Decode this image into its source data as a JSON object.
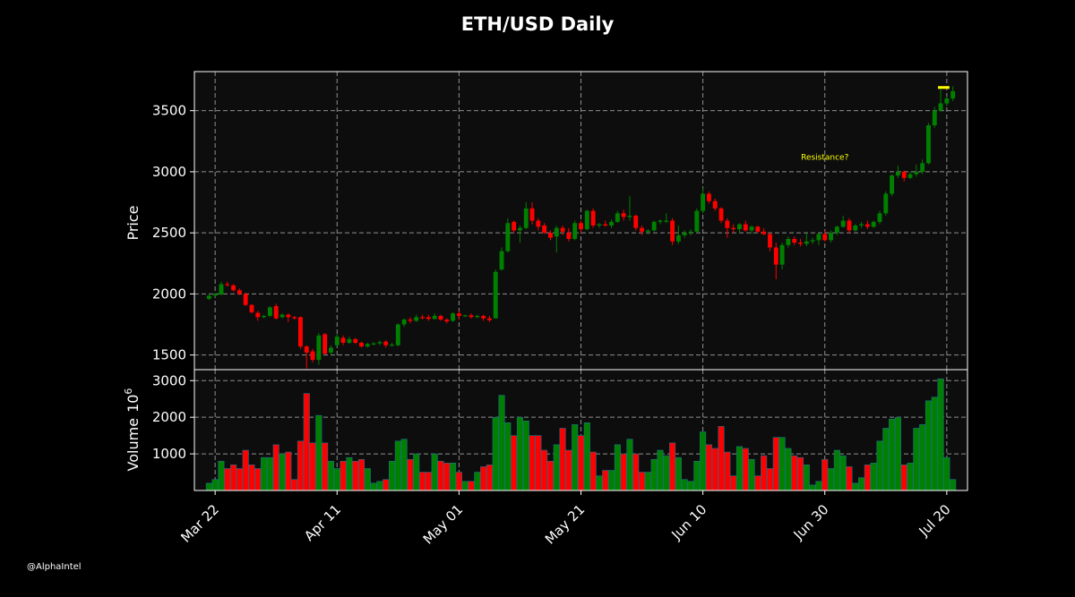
{
  "chart_data": {
    "type": "candlestick",
    "title": "ETH/USD Daily",
    "price_panel": {
      "ylabel": "Price",
      "ylim": [
        1380,
        3820
      ],
      "yticks": [
        1500,
        2000,
        2500,
        3000,
        3500
      ],
      "grid": true
    },
    "volume_panel": {
      "ylabel": "Volume",
      "ylabel_exponent": "10",
      "ylabel_exponent_power": "6",
      "ylim": [
        0,
        3300
      ],
      "yticks": [
        1000,
        2000,
        3000
      ],
      "grid": true
    },
    "x_axis": {
      "start_day": "Mar 21",
      "tick_labels": [
        "Mar 22",
        "Apr 11",
        "May 01",
        "May 21",
        "Jun 10",
        "Jun 30",
        "Jul 20"
      ],
      "tick_days": [
        "Mar 22",
        "Apr 11",
        "May 01",
        "May 21",
        "Jun 10",
        "Jun 30",
        "Jul 20"
      ]
    },
    "annotation": {
      "text": "Resistance?",
      "at_day": "Jun 30",
      "at_price": 3100,
      "color": "#ffff00"
    },
    "resistance_line": {
      "from_day": "Jul 19",
      "to_day": "Jul 20",
      "price": 3690,
      "color": "#ffff00"
    },
    "colors": {
      "up": "#008000",
      "down": "#ff0000",
      "background": "#000000",
      "plot_bg": "#0d0d0d",
      "grid": "#b0b0b0"
    },
    "candles": [
      {
        "d": "Mar 21",
        "o": 1960,
        "h": 2000,
        "l": 1950,
        "c": 1985,
        "v": 200
      },
      {
        "d": "Mar 22",
        "o": 1985,
        "h": 2010,
        "l": 1975,
        "c": 2000,
        "v": 300
      },
      {
        "d": "Mar 23",
        "o": 1995,
        "h": 2100,
        "l": 1990,
        "c": 2080,
        "v": 800
      },
      {
        "d": "Mar 24",
        "o": 2080,
        "h": 2100,
        "l": 2060,
        "c": 2075,
        "v": 600
      },
      {
        "d": "Mar 25",
        "o": 2070,
        "h": 2080,
        "l": 2020,
        "c": 2030,
        "v": 700
      },
      {
        "d": "Mar 26",
        "o": 2030,
        "h": 2045,
        "l": 1990,
        "c": 2000,
        "v": 600
      },
      {
        "d": "Mar 27",
        "o": 2000,
        "h": 2010,
        "l": 1900,
        "c": 1910,
        "v": 1100
      },
      {
        "d": "Mar 28",
        "o": 1910,
        "h": 1915,
        "l": 1840,
        "c": 1850,
        "v": 700
      },
      {
        "d": "Mar 29",
        "o": 1845,
        "h": 1860,
        "l": 1780,
        "c": 1810,
        "v": 600
      },
      {
        "d": "Mar 30",
        "o": 1810,
        "h": 1830,
        "l": 1800,
        "c": 1820,
        "v": 900
      },
      {
        "d": "Mar 31",
        "o": 1820,
        "h": 1900,
        "l": 1810,
        "c": 1890,
        "v": 900
      },
      {
        "d": "Apr 01",
        "o": 1900,
        "h": 1920,
        "l": 1790,
        "c": 1800,
        "v": 1250
      },
      {
        "d": "Apr 02",
        "o": 1810,
        "h": 1840,
        "l": 1800,
        "c": 1830,
        "v": 1000
      },
      {
        "d": "Apr 03",
        "o": 1830,
        "h": 1840,
        "l": 1770,
        "c": 1810,
        "v": 1050
      },
      {
        "d": "Apr 04",
        "o": 1810,
        "h": 1820,
        "l": 1790,
        "c": 1800,
        "v": 300
      },
      {
        "d": "Apr 05",
        "o": 1810,
        "h": 1815,
        "l": 1550,
        "c": 1570,
        "v": 1350
      },
      {
        "d": "Apr 06",
        "o": 1570,
        "h": 1580,
        "l": 1390,
        "c": 1520,
        "v": 2650
      },
      {
        "d": "Apr 07",
        "o": 1530,
        "h": 1550,
        "l": 1440,
        "c": 1460,
        "v": 1300
      },
      {
        "d": "Apr 08",
        "o": 1460,
        "h": 1680,
        "l": 1420,
        "c": 1660,
        "v": 2050
      },
      {
        "d": "Apr 09",
        "o": 1670,
        "h": 1680,
        "l": 1500,
        "c": 1510,
        "v": 1300
      },
      {
        "d": "Apr 10",
        "o": 1520,
        "h": 1580,
        "l": 1500,
        "c": 1560,
        "v": 800
      },
      {
        "d": "Apr 11",
        "o": 1580,
        "h": 1670,
        "l": 1570,
        "c": 1650,
        "v": 600
      },
      {
        "d": "Apr 12",
        "o": 1640,
        "h": 1660,
        "l": 1580,
        "c": 1600,
        "v": 800
      },
      {
        "d": "Apr 13",
        "o": 1600,
        "h": 1650,
        "l": 1590,
        "c": 1630,
        "v": 900
      },
      {
        "d": "Apr 14",
        "o": 1630,
        "h": 1640,
        "l": 1590,
        "c": 1600,
        "v": 800
      },
      {
        "d": "Apr 15",
        "o": 1600,
        "h": 1610,
        "l": 1560,
        "c": 1570,
        "v": 850
      },
      {
        "d": "Apr 16",
        "o": 1570,
        "h": 1600,
        "l": 1560,
        "c": 1590,
        "v": 600
      },
      {
        "d": "Apr 17",
        "o": 1590,
        "h": 1605,
        "l": 1580,
        "c": 1595,
        "v": 200
      },
      {
        "d": "Apr 18",
        "o": 1595,
        "h": 1620,
        "l": 1580,
        "c": 1605,
        "v": 250
      },
      {
        "d": "Apr 19",
        "o": 1610,
        "h": 1620,
        "l": 1560,
        "c": 1580,
        "v": 300
      },
      {
        "d": "Apr 20",
        "o": 1580,
        "h": 1600,
        "l": 1570,
        "c": 1585,
        "v": 800
      },
      {
        "d": "Apr 21",
        "o": 1580,
        "h": 1760,
        "l": 1570,
        "c": 1750,
        "v": 1350
      },
      {
        "d": "Apr 22",
        "o": 1750,
        "h": 1800,
        "l": 1730,
        "c": 1790,
        "v": 1400
      },
      {
        "d": "Apr 23",
        "o": 1790,
        "h": 1810,
        "l": 1760,
        "c": 1780,
        "v": 850
      },
      {
        "d": "Apr 24",
        "o": 1780,
        "h": 1830,
        "l": 1770,
        "c": 1810,
        "v": 1000
      },
      {
        "d": "Apr 25",
        "o": 1810,
        "h": 1830,
        "l": 1790,
        "c": 1805,
        "v": 500
      },
      {
        "d": "Apr 26",
        "o": 1810,
        "h": 1830,
        "l": 1780,
        "c": 1795,
        "v": 500
      },
      {
        "d": "Apr 27",
        "o": 1795,
        "h": 1840,
        "l": 1790,
        "c": 1820,
        "v": 1000
      },
      {
        "d": "Apr 28",
        "o": 1820,
        "h": 1830,
        "l": 1780,
        "c": 1790,
        "v": 800
      },
      {
        "d": "Apr 29",
        "o": 1790,
        "h": 1800,
        "l": 1760,
        "c": 1775,
        "v": 750
      },
      {
        "d": "Apr 30",
        "o": 1780,
        "h": 1850,
        "l": 1770,
        "c": 1840,
        "v": 750
      },
      {
        "d": "May 01",
        "o": 1840,
        "h": 1860,
        "l": 1790,
        "c": 1820,
        "v": 500
      },
      {
        "d": "May 02",
        "o": 1820,
        "h": 1830,
        "l": 1810,
        "c": 1825,
        "v": 250
      },
      {
        "d": "May 03",
        "o": 1825,
        "h": 1840,
        "l": 1800,
        "c": 1810,
        "v": 250
      },
      {
        "d": "May 04",
        "o": 1810,
        "h": 1830,
        "l": 1800,
        "c": 1820,
        "v": 500
      },
      {
        "d": "May 05",
        "o": 1820,
        "h": 1830,
        "l": 1780,
        "c": 1800,
        "v": 650
      },
      {
        "d": "May 06",
        "o": 1800,
        "h": 1820,
        "l": 1770,
        "c": 1785,
        "v": 700
      },
      {
        "d": "May 07",
        "o": 1800,
        "h": 2200,
        "l": 1800,
        "c": 2180,
        "v": 2000
      },
      {
        "d": "May 08",
        "o": 2200,
        "h": 2380,
        "l": 2190,
        "c": 2350,
        "v": 2600
      },
      {
        "d": "May 09",
        "o": 2350,
        "h": 2620,
        "l": 2340,
        "c": 2580,
        "v": 1850
      },
      {
        "d": "May 10",
        "o": 2590,
        "h": 2600,
        "l": 2500,
        "c": 2520,
        "v": 1500
      },
      {
        "d": "May 11",
        "o": 2520,
        "h": 2560,
        "l": 2420,
        "c": 2540,
        "v": 2000
      },
      {
        "d": "May 12",
        "o": 2540,
        "h": 2750,
        "l": 2530,
        "c": 2700,
        "v": 1900
      },
      {
        "d": "May 13",
        "o": 2700,
        "h": 2750,
        "l": 2570,
        "c": 2600,
        "v": 1500
      },
      {
        "d": "May 14",
        "o": 2600,
        "h": 2620,
        "l": 2520,
        "c": 2550,
        "v": 1500
      },
      {
        "d": "May 15",
        "o": 2560,
        "h": 2580,
        "l": 2490,
        "c": 2500,
        "v": 1100
      },
      {
        "d": "May 16",
        "o": 2500,
        "h": 2520,
        "l": 2440,
        "c": 2460,
        "v": 800
      },
      {
        "d": "May 17",
        "o": 2470,
        "h": 2560,
        "l": 2340,
        "c": 2540,
        "v": 1250
      },
      {
        "d": "May 18",
        "o": 2540,
        "h": 2560,
        "l": 2480,
        "c": 2510,
        "v": 1700
      },
      {
        "d": "May 19",
        "o": 2500,
        "h": 2540,
        "l": 2430,
        "c": 2450,
        "v": 1100
      },
      {
        "d": "May 20",
        "o": 2450,
        "h": 2600,
        "l": 2440,
        "c": 2580,
        "v": 1800
      },
      {
        "d": "May 21",
        "o": 2580,
        "h": 2600,
        "l": 2500,
        "c": 2530,
        "v": 1500
      },
      {
        "d": "May 22",
        "o": 2530,
        "h": 2690,
        "l": 2520,
        "c": 2680,
        "v": 1850
      },
      {
        "d": "May 23",
        "o": 2680,
        "h": 2700,
        "l": 2540,
        "c": 2560,
        "v": 1050
      },
      {
        "d": "May 24",
        "o": 2560,
        "h": 2580,
        "l": 2540,
        "c": 2570,
        "v": 400
      },
      {
        "d": "May 25",
        "o": 2570,
        "h": 2600,
        "l": 2550,
        "c": 2560,
        "v": 550
      },
      {
        "d": "May 26",
        "o": 2560,
        "h": 2610,
        "l": 2540,
        "c": 2590,
        "v": 550
      },
      {
        "d": "May 27",
        "o": 2590,
        "h": 2680,
        "l": 2580,
        "c": 2660,
        "v": 1250
      },
      {
        "d": "May 28",
        "o": 2660,
        "h": 2690,
        "l": 2600,
        "c": 2630,
        "v": 1000
      },
      {
        "d": "May 29",
        "o": 2630,
        "h": 2800,
        "l": 2600,
        "c": 2640,
        "v": 1400
      },
      {
        "d": "May 30",
        "o": 2640,
        "h": 2650,
        "l": 2520,
        "c": 2540,
        "v": 1000
      },
      {
        "d": "May 31",
        "o": 2540,
        "h": 2560,
        "l": 2480,
        "c": 2510,
        "v": 500
      },
      {
        "d": "Jun 01",
        "o": 2510,
        "h": 2530,
        "l": 2490,
        "c": 2520,
        "v": 500
      },
      {
        "d": "Jun 02",
        "o": 2520,
        "h": 2600,
        "l": 2510,
        "c": 2590,
        "v": 850
      },
      {
        "d": "Jun 03",
        "o": 2590,
        "h": 2610,
        "l": 2570,
        "c": 2600,
        "v": 1100
      },
      {
        "d": "Jun 04",
        "o": 2600,
        "h": 2660,
        "l": 2580,
        "c": 2600,
        "v": 950
      },
      {
        "d": "Jun 05",
        "o": 2600,
        "h": 2620,
        "l": 2400,
        "c": 2430,
        "v": 1300
      },
      {
        "d": "Jun 06",
        "o": 2430,
        "h": 2560,
        "l": 2410,
        "c": 2480,
        "v": 900
      },
      {
        "d": "Jun 07",
        "o": 2480,
        "h": 2520,
        "l": 2460,
        "c": 2500,
        "v": 300
      },
      {
        "d": "Jun 08",
        "o": 2500,
        "h": 2530,
        "l": 2480,
        "c": 2510,
        "v": 250
      },
      {
        "d": "Jun 09",
        "o": 2510,
        "h": 2700,
        "l": 2500,
        "c": 2680,
        "v": 800
      },
      {
        "d": "Jun 10",
        "o": 2680,
        "h": 2870,
        "l": 2660,
        "c": 2820,
        "v": 1600
      },
      {
        "d": "Jun 11",
        "o": 2820,
        "h": 2840,
        "l": 2740,
        "c": 2760,
        "v": 1250
      },
      {
        "d": "Jun 12",
        "o": 2760,
        "h": 2780,
        "l": 2680,
        "c": 2700,
        "v": 1150
      },
      {
        "d": "Jun 13",
        "o": 2700,
        "h": 2710,
        "l": 2580,
        "c": 2600,
        "v": 1750
      },
      {
        "d": "Jun 14",
        "o": 2600,
        "h": 2620,
        "l": 2460,
        "c": 2540,
        "v": 1050
      },
      {
        "d": "Jun 15",
        "o": 2540,
        "h": 2570,
        "l": 2500,
        "c": 2530,
        "v": 400
      },
      {
        "d": "Jun 16",
        "o": 2530,
        "h": 2580,
        "l": 2500,
        "c": 2570,
        "v": 1200
      },
      {
        "d": "Jun 17",
        "o": 2570,
        "h": 2600,
        "l": 2510,
        "c": 2520,
        "v": 1150
      },
      {
        "d": "Jun 18",
        "o": 2520,
        "h": 2560,
        "l": 2490,
        "c": 2550,
        "v": 850
      },
      {
        "d": "Jun 19",
        "o": 2550,
        "h": 2560,
        "l": 2500,
        "c": 2510,
        "v": 400
      },
      {
        "d": "Jun 20",
        "o": 2510,
        "h": 2540,
        "l": 2480,
        "c": 2490,
        "v": 950
      },
      {
        "d": "Jun 21",
        "o": 2490,
        "h": 2500,
        "l": 2350,
        "c": 2380,
        "v": 600
      },
      {
        "d": "Jun 22",
        "o": 2380,
        "h": 2420,
        "l": 2120,
        "c": 2240,
        "v": 1450
      },
      {
        "d": "Jun 23",
        "o": 2240,
        "h": 2420,
        "l": 2200,
        "c": 2400,
        "v": 1450
      },
      {
        "d": "Jun 24",
        "o": 2400,
        "h": 2470,
        "l": 2380,
        "c": 2450,
        "v": 1150
      },
      {
        "d": "Jun 25",
        "o": 2450,
        "h": 2470,
        "l": 2400,
        "c": 2420,
        "v": 950
      },
      {
        "d": "Jun 26",
        "o": 2420,
        "h": 2450,
        "l": 2390,
        "c": 2410,
        "v": 900
      },
      {
        "d": "Jun 27",
        "o": 2410,
        "h": 2500,
        "l": 2390,
        "c": 2430,
        "v": 700
      },
      {
        "d": "Jun 28",
        "o": 2430,
        "h": 2460,
        "l": 2410,
        "c": 2440,
        "v": 150
      },
      {
        "d": "Jun 29",
        "o": 2440,
        "h": 2500,
        "l": 2400,
        "c": 2490,
        "v": 250
      },
      {
        "d": "Jun 30",
        "o": 2490,
        "h": 2520,
        "l": 2430,
        "c": 2440,
        "v": 850
      },
      {
        "d": "Jul 01",
        "o": 2440,
        "h": 2520,
        "l": 2420,
        "c": 2500,
        "v": 600
      },
      {
        "d": "Jul 02",
        "o": 2500,
        "h": 2560,
        "l": 2480,
        "c": 2550,
        "v": 1100
      },
      {
        "d": "Jul 03",
        "o": 2550,
        "h": 2640,
        "l": 2540,
        "c": 2600,
        "v": 950
      },
      {
        "d": "Jul 04",
        "o": 2600,
        "h": 2620,
        "l": 2500,
        "c": 2520,
        "v": 650
      },
      {
        "d": "Jul 05",
        "o": 2520,
        "h": 2570,
        "l": 2510,
        "c": 2560,
        "v": 200
      },
      {
        "d": "Jul 06",
        "o": 2560,
        "h": 2590,
        "l": 2540,
        "c": 2570,
        "v": 350
      },
      {
        "d": "Jul 07",
        "o": 2570,
        "h": 2600,
        "l": 2530,
        "c": 2550,
        "v": 700
      },
      {
        "d": "Jul 08",
        "o": 2550,
        "h": 2600,
        "l": 2540,
        "c": 2590,
        "v": 750
      },
      {
        "d": "Jul 09",
        "o": 2590,
        "h": 2680,
        "l": 2570,
        "c": 2660,
        "v": 1350
      },
      {
        "d": "Jul 10",
        "o": 2660,
        "h": 2840,
        "l": 2640,
        "c": 2820,
        "v": 1700
      },
      {
        "d": "Jul 11",
        "o": 2820,
        "h": 2980,
        "l": 2800,
        "c": 2970,
        "v": 1950
      },
      {
        "d": "Jul 12",
        "o": 2970,
        "h": 3050,
        "l": 2950,
        "c": 3000,
        "v": 2000
      },
      {
        "d": "Jul 13",
        "o": 3000,
        "h": 3010,
        "l": 2920,
        "c": 2950,
        "v": 700
      },
      {
        "d": "Jul 14",
        "o": 2950,
        "h": 3000,
        "l": 2940,
        "c": 2980,
        "v": 750
      },
      {
        "d": "Jul 15",
        "o": 2980,
        "h": 3060,
        "l": 2960,
        "c": 3000,
        "v": 1700
      },
      {
        "d": "Jul 16",
        "o": 3000,
        "h": 3100,
        "l": 2980,
        "c": 3070,
        "v": 1800
      },
      {
        "d": "Jul 17",
        "o": 3070,
        "h": 3400,
        "l": 3060,
        "c": 3380,
        "v": 2450
      },
      {
        "d": "Jul 18",
        "o": 3380,
        "h": 3530,
        "l": 3360,
        "c": 3500,
        "v": 2550
      },
      {
        "d": "Jul 19",
        "o": 3500,
        "h": 3700,
        "l": 3490,
        "c": 3560,
        "v": 3050
      },
      {
        "d": "Jul 20",
        "o": 3560,
        "h": 3620,
        "l": 3540,
        "c": 3600,
        "v": 900
      },
      {
        "d": "Jul 21",
        "o": 3600,
        "h": 3700,
        "l": 3580,
        "c": 3660,
        "v": 300
      }
    ]
  },
  "credit": "@AlphaIntel"
}
